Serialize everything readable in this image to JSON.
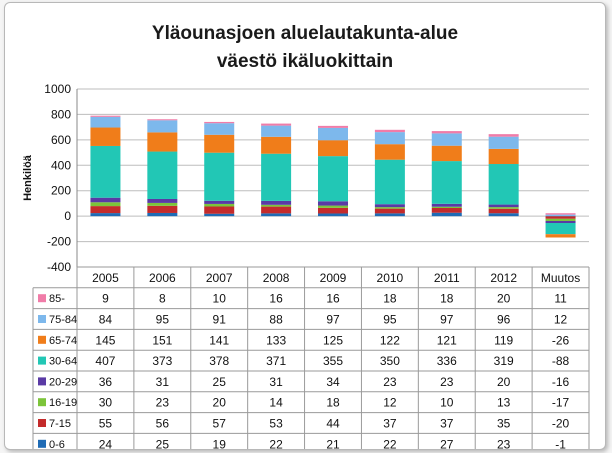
{
  "chart_data": {
    "type": "bar",
    "stacked": true,
    "title_line1": "Yläounasjoen aluelautakunta-alue",
    "title_line2": "väestö ikäluokittain",
    "ylabel": "Henkilöä",
    "ylim": [
      -400,
      1000
    ],
    "yticks": [
      "1000",
      "800",
      "600",
      "400",
      "200",
      "0",
      "-200",
      "-400"
    ],
    "ytick_values": [
      1000,
      800,
      600,
      400,
      200,
      0,
      -200,
      -400
    ],
    "grid": true,
    "legend_placement": "table-left",
    "categories": [
      "2005",
      "2006",
      "2007",
      "2008",
      "2009",
      "2010",
      "2011",
      "2012",
      "Muutos"
    ],
    "series": [
      {
        "name": "0-6",
        "color": "#1f6bb5",
        "values": [
          24,
          25,
          19,
          22,
          21,
          22,
          27,
          23,
          -1
        ]
      },
      {
        "name": "7-15",
        "color": "#c42b2b",
        "values": [
          55,
          56,
          57,
          53,
          44,
          37,
          37,
          35,
          -20
        ]
      },
      {
        "name": "16-19",
        "color": "#7cc43a",
        "values": [
          30,
          23,
          20,
          14,
          18,
          12,
          10,
          13,
          -17
        ]
      },
      {
        "name": "20-29",
        "color": "#5a3aa5",
        "values": [
          36,
          31,
          25,
          31,
          34,
          23,
          23,
          20,
          -16
        ]
      },
      {
        "name": "30-64",
        "color": "#22c7b5",
        "values": [
          407,
          373,
          378,
          371,
          355,
          350,
          336,
          319,
          -88
        ]
      },
      {
        "name": "65-74",
        "color": "#f07d1a",
        "values": [
          145,
          151,
          141,
          133,
          125,
          122,
          121,
          119,
          -26
        ]
      },
      {
        "name": "75-84",
        "color": "#7db8ec",
        "values": [
          84,
          95,
          91,
          88,
          97,
          95,
          97,
          96,
          12
        ]
      },
      {
        "name": "85-",
        "color": "#f07ca8",
        "values": [
          9,
          8,
          10,
          16,
          16,
          18,
          18,
          20,
          11
        ]
      }
    ]
  }
}
